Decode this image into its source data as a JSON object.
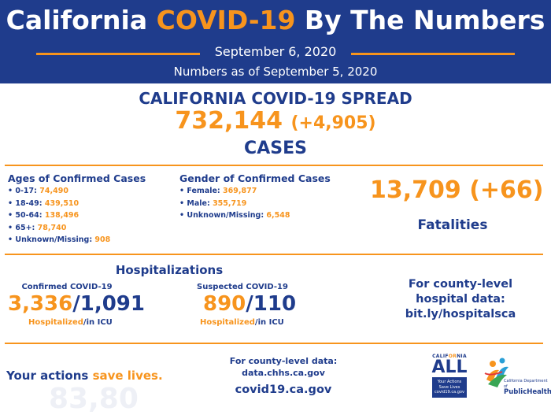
{
  "header": {
    "title_pre": "California ",
    "title_hl": "COVID-19",
    "title_post": " By The Numbers",
    "date": "September 6, 2020",
    "as_of": "Numbers as of September 5, 2020"
  },
  "spread": {
    "heading": "CALIFORNIA COVID-19 SPREAD",
    "cases": "732,144",
    "cases_delta": "(+4,905)",
    "cases_label": "CASES"
  },
  "ages": {
    "heading": "Ages of Confirmed Cases",
    "items": [
      {
        "label": "• 0-17: ",
        "value": "74,490"
      },
      {
        "label": "• 18-49: ",
        "value": "439,510"
      },
      {
        "label": "• 50-64: ",
        "value": "138,496"
      },
      {
        "label": "• 65+: ",
        "value": "78,740"
      },
      {
        "label": "• Unknown/Missing: ",
        "value": "908"
      }
    ]
  },
  "gender": {
    "heading": "Gender of Confirmed Cases",
    "items": [
      {
        "label": "• Female: ",
        "value": "369,877"
      },
      {
        "label": "• Male: ",
        "value": "355,719"
      },
      {
        "label": "• Unknown/Missing: ",
        "value": "6,548"
      }
    ]
  },
  "fatalities": {
    "number": "13,709 (+66)",
    "label": "Fatalities"
  },
  "hospitalizations": {
    "heading": "Hospitalizations",
    "confirmed": {
      "label": "Confirmed COVID-19",
      "hospitalized": "3,336",
      "sep": "/",
      "icu": "1,091",
      "hosp_word": "Hospitalized",
      "icu_word": "/in ICU"
    },
    "suspected": {
      "label": "Suspected COVID-19",
      "hospitalized": "890",
      "sep": "/",
      "icu": "110",
      "hosp_word": "Hospitalized",
      "icu_word": "/in ICU"
    },
    "county_line1": "For county-level",
    "county_line2": "hospital data:",
    "county_link": "bit.ly/hospitalsca"
  },
  "footer": {
    "slogan_pre": "Your actions ",
    "slogan_hl": "save lives.",
    "watermark": "83,80",
    "county_data_label": "For county-level data:",
    "county_data_link": "data.chhs.ca.gov",
    "website": "covid19.ca.gov"
  },
  "logos": {
    "ca_all_small_pre": "CALIF",
    "ca_all_small_hl": "OR",
    "ca_all_small_post": "NIA",
    "ca_all_big": "ALL",
    "ca_all_box_1": "Your Actions",
    "ca_all_box_2": "Save Lives",
    "ca_all_box_3": "covid19.ca.gov",
    "cdph_small": "California Department of",
    "cdph_big": "PublicHealth"
  },
  "colors": {
    "navy": "#1f3c8c",
    "orange": "#f7941d"
  }
}
